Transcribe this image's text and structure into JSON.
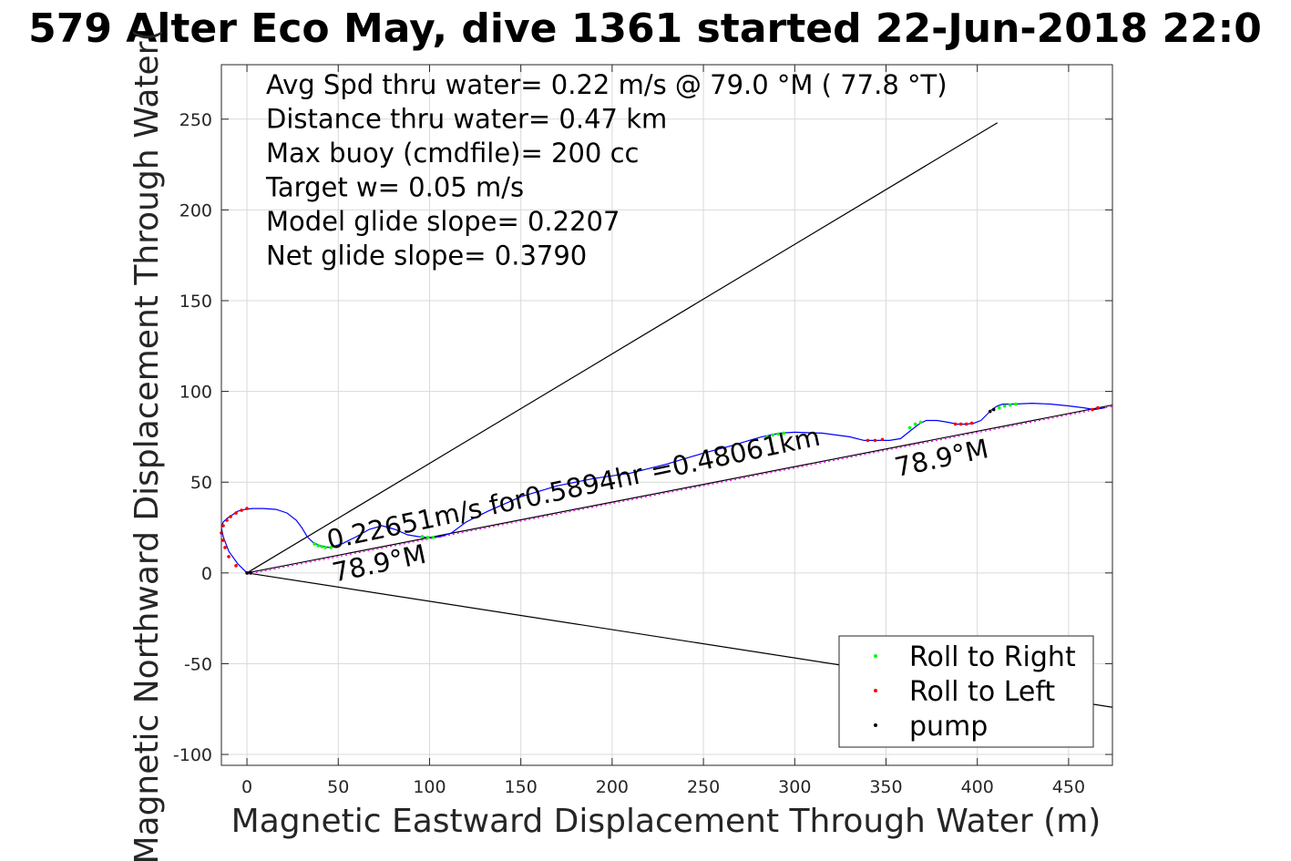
{
  "chart_data": {
    "type": "line",
    "title": "579 Alter Eco May, dive 1361 started 22-Jun-2018 22:0",
    "xlabel": "Magnetic Eastward Displacement Through Water (m)",
    "ylabel": "Magnetic Northward Displacement Through Water(",
    "xlim": [
      -14,
      474
    ],
    "ylim": [
      -106,
      280
    ],
    "xticks": [
      0,
      50,
      100,
      150,
      200,
      250,
      300,
      350,
      400,
      450
    ],
    "yticks": [
      -100,
      -50,
      0,
      50,
      100,
      150,
      200,
      250
    ],
    "xtick_labels": [
      "0",
      "50",
      "100",
      "150",
      "200",
      "250",
      "300",
      "350",
      "400",
      "450"
    ],
    "ytick_labels": [
      "-100",
      "-50",
      "0",
      "50",
      "100",
      "150",
      "200",
      "250"
    ],
    "grid": true,
    "legend_position": "bottom-right",
    "info_lines": [
      "Avg Spd thru water=  0.22 m/s @  79.0 °M ( 77.8 °T)",
      "Distance thru water=  0.47 km",
      "Max buoy (cmdfile)= 200 cc",
      "Target w= 0.05 m/s",
      "Model glide slope= 0.2207",
      "Net glide slope= 0.3790"
    ],
    "annotations": [
      {
        "text": "0.22651m/s for0.5894hr =0.48061km",
        "x": 45,
        "y": 13,
        "angle": 12
      },
      {
        "text": "78.9°M",
        "x": 48,
        "y": -5,
        "angle": 12
      },
      {
        "text": "78.9°M",
        "x": 356,
        "y": 53,
        "angle": 12
      }
    ],
    "cone_lines": [
      {
        "x": [
          0,
          411
        ],
        "y": [
          0,
          248
        ]
      },
      {
        "x": [
          0,
          474
        ],
        "y": [
          0,
          -74
        ]
      }
    ],
    "heading_line": {
      "x": [
        0,
        474
      ],
      "y": [
        0,
        92.5
      ]
    },
    "track": {
      "x": [
        0,
        -5,
        -10,
        -13,
        -14,
        -13,
        -11,
        -8,
        -5,
        -1,
        3,
        9,
        16,
        22,
        27,
        30,
        33,
        36,
        40,
        45,
        52,
        60,
        67,
        74,
        81,
        88,
        94,
        100,
        106,
        112,
        120,
        132,
        150,
        170,
        190,
        210,
        230,
        250,
        265,
        275,
        282,
        287,
        292,
        300,
        315,
        330,
        338,
        345,
        352,
        358,
        363,
        368,
        372,
        378,
        384,
        389,
        394,
        398,
        402,
        405,
        408,
        411,
        414,
        420,
        430,
        440,
        450,
        458,
        464,
        470
      ],
      "y": [
        0,
        5,
        12,
        20,
        25,
        28,
        30,
        32,
        34,
        35,
        35.5,
        35.5,
        35,
        33,
        29,
        25,
        20,
        17,
        15,
        14,
        16,
        20,
        24,
        26,
        24,
        21,
        20,
        19.5,
        20,
        22,
        28,
        34,
        42,
        48,
        52,
        55,
        60,
        66,
        70,
        73,
        75,
        76,
        77,
        77.5,
        77,
        75,
        73,
        73,
        73,
        74,
        78,
        82,
        84,
        84,
        83,
        82,
        82,
        82.5,
        84,
        87,
        90,
        92,
        93,
        93,
        93.5,
        93,
        92,
        91,
        90,
        91
      ]
    },
    "series": [
      {
        "name": "Roll to Right",
        "color": "#00ff00",
        "x": [
          37,
          39,
          41,
          43,
          46,
          96,
          99,
          102,
          285,
          288,
          291,
          294,
          363,
          366,
          369,
          412,
          415,
          418,
          421
        ],
        "y": [
          16,
          15,
          14.5,
          14,
          14,
          20,
          19.5,
          19.6,
          75,
          76,
          76.5,
          77,
          80,
          82,
          83,
          91,
          92,
          92.5,
          93
        ]
      },
      {
        "name": "Roll to Left",
        "color": "#ff0000",
        "x": [
          -13,
          -14,
          -13,
          -11,
          -9,
          -6,
          -3,
          0,
          -12,
          -10,
          -6,
          340,
          344,
          348,
          388,
          391,
          394,
          397,
          463,
          466
        ],
        "y": [
          18,
          22,
          26,
          29,
          31,
          33,
          34.5,
          35.5,
          14,
          9,
          4,
          73,
          73,
          73.5,
          82,
          82,
          82,
          82.5,
          90,
          91
        ]
      },
      {
        "name": "pump",
        "color": "#000000",
        "x": [
          0,
          2,
          407,
          409
        ],
        "y": [
          0,
          0,
          89,
          90
        ]
      }
    ],
    "colors": {
      "track": "#0000ff",
      "heading": "#ff00ff",
      "lines": "#000000",
      "grid": "#d9d9d9"
    }
  }
}
